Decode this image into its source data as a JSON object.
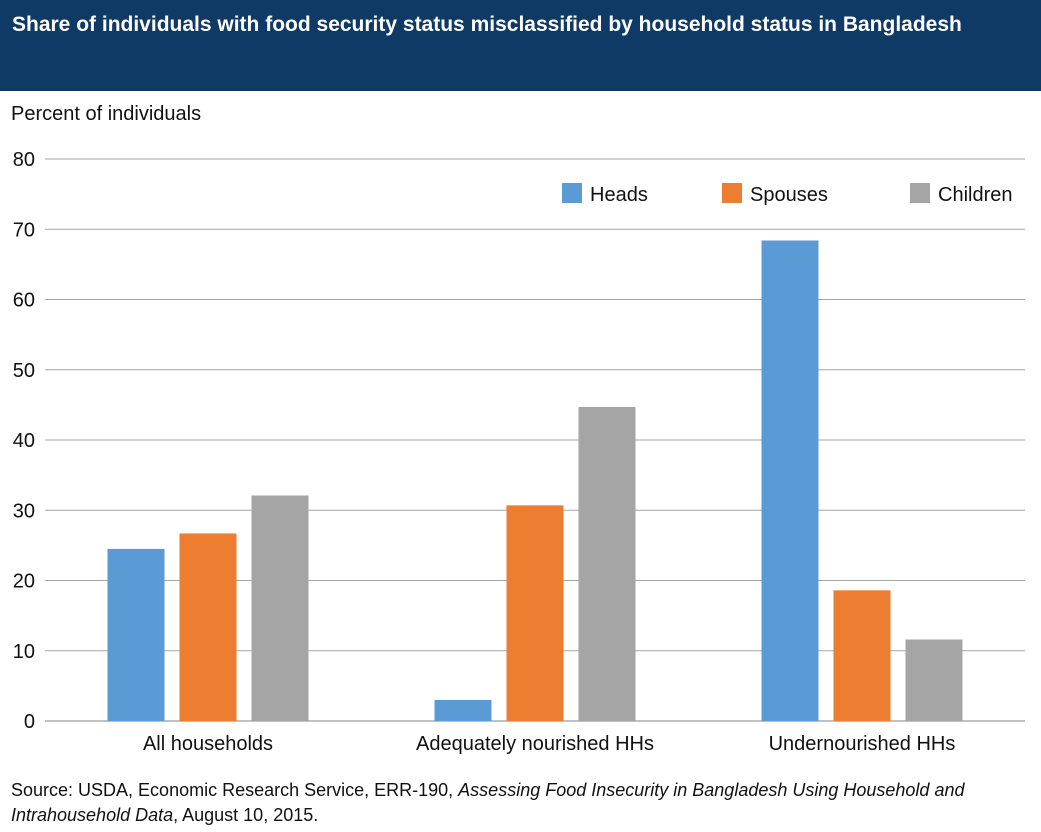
{
  "title": "Share of individuals with food security status misclassified by household status in Bangladesh",
  "source": {
    "prefix": "Source: USDA, Economic Research Service, ERR-190, ",
    "italic": "Assessing Food Insecurity in Bangladesh Using Household and Intrahousehold Data",
    "suffix": ", August 10, 2015."
  },
  "colors": {
    "header_bg": "#0f3a66",
    "heads": "#5b9bd5",
    "spouses": "#ed7d31",
    "children": "#a5a5a5"
  },
  "chart_data": {
    "type": "bar",
    "title": "Share of individuals with food security status misclassified by household status in Bangladesh",
    "xlabel": "",
    "ylabel": "Percent of individuals",
    "ylim": [
      0,
      80
    ],
    "yticks": [
      0,
      10,
      20,
      30,
      40,
      50,
      60,
      70,
      80
    ],
    "grid": true,
    "legend_position": "top-right",
    "categories": [
      "All households",
      "Adequately nourished HHs",
      "Undernourished HHs"
    ],
    "series": [
      {
        "name": "Heads",
        "color": "#5b9bd5",
        "values": [
          24.5,
          3.0,
          68.4
        ]
      },
      {
        "name": "Spouses",
        "color": "#ed7d31",
        "values": [
          26.7,
          30.7,
          18.6
        ]
      },
      {
        "name": "Children",
        "color": "#a5a5a5",
        "values": [
          32.1,
          44.7,
          11.6
        ]
      }
    ]
  }
}
